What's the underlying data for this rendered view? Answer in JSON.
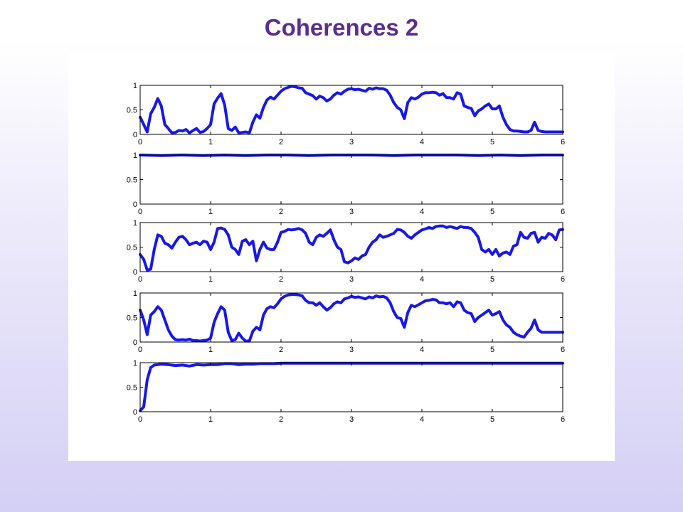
{
  "slide": {
    "title": "Coherences 2"
  },
  "colors": {
    "line": "#1818e6",
    "title": "#5b2d91",
    "axes": "#000000"
  },
  "chart_data": [
    {
      "type": "line",
      "xlim": [
        0,
        6
      ],
      "ylim": [
        0,
        1
      ],
      "xticks": [
        "0",
        "1",
        "2",
        "3",
        "4",
        "5",
        "6"
      ],
      "yticks": [
        "0",
        "0.5",
        "1"
      ],
      "grid": false,
      "x": [
        0,
        0.05,
        0.1,
        0.15,
        0.2,
        0.25,
        0.3,
        0.35,
        0.4,
        0.45,
        0.5,
        0.55,
        0.6,
        0.65,
        0.7,
        0.75,
        0.8,
        0.85,
        0.9,
        0.95,
        1.0,
        1.05,
        1.1,
        1.15,
        1.2,
        1.25,
        1.3,
        1.35,
        1.4,
        1.45,
        1.5,
        1.55,
        1.6,
        1.65,
        1.7,
        1.75,
        1.8,
        1.85,
        1.9,
        1.95,
        2.0,
        2.05,
        2.1,
        2.15,
        2.2,
        2.25,
        2.3,
        2.35,
        2.4,
        2.45,
        2.5,
        2.55,
        2.6,
        2.65,
        2.7,
        2.75,
        2.8,
        2.85,
        2.9,
        2.95,
        3.0,
        3.05,
        3.1,
        3.15,
        3.2,
        3.25,
        3.3,
        3.35,
        3.4,
        3.45,
        3.5,
        3.55,
        3.6,
        3.65,
        3.7,
        3.75,
        3.8,
        3.85,
        3.9,
        3.95,
        4.0,
        4.05,
        4.1,
        4.15,
        4.2,
        4.25,
        4.3,
        4.35,
        4.4,
        4.45,
        4.5,
        4.55,
        4.6,
        4.65,
        4.7,
        4.75,
        4.8,
        4.85,
        4.9,
        4.95,
        5.0,
        5.05,
        5.1,
        5.15,
        5.2,
        5.25,
        5.3,
        5.35,
        5.4,
        5.45,
        5.5,
        5.55,
        5.6,
        5.65,
        5.7,
        5.75,
        5.8,
        5.85,
        5.9,
        5.95,
        6.0
      ],
      "y": [
        0.35,
        0.2,
        0.05,
        0.42,
        0.55,
        0.73,
        0.58,
        0.2,
        0.12,
        0.03,
        0.04,
        0.08,
        0.07,
        0.1,
        0.03,
        0.08,
        0.12,
        0.04,
        0.06,
        0.12,
        0.2,
        0.62,
        0.74,
        0.83,
        0.6,
        0.12,
        0.08,
        0.15,
        0.03,
        0.04,
        0.05,
        0.03,
        0.25,
        0.4,
        0.33,
        0.55,
        0.7,
        0.76,
        0.72,
        0.8,
        0.88,
        0.93,
        0.96,
        0.98,
        0.97,
        0.95,
        0.94,
        0.85,
        0.82,
        0.79,
        0.72,
        0.78,
        0.75,
        0.68,
        0.72,
        0.8,
        0.85,
        0.82,
        0.88,
        0.92,
        0.93,
        0.91,
        0.92,
        0.9,
        0.88,
        0.94,
        0.92,
        0.95,
        0.93,
        0.93,
        0.9,
        0.8,
        0.65,
        0.55,
        0.5,
        0.32,
        0.65,
        0.75,
        0.72,
        0.76,
        0.82,
        0.85,
        0.85,
        0.86,
        0.85,
        0.8,
        0.83,
        0.75,
        0.75,
        0.72,
        0.85,
        0.82,
        0.58,
        0.55,
        0.53,
        0.38,
        0.48,
        0.52,
        0.58,
        0.62,
        0.52,
        0.52,
        0.58,
        0.35,
        0.2,
        0.1,
        0.07,
        0.07,
        0.06,
        0.05,
        0.05,
        0.08,
        0.25,
        0.08,
        0.06,
        0.05,
        0.05,
        0.05,
        0.05,
        0.05,
        0.05
      ]
    },
    {
      "type": "line",
      "xlim": [
        0,
        6
      ],
      "ylim": [
        0,
        1
      ],
      "xticks": [
        "0",
        "1",
        "2",
        "3",
        "4",
        "5",
        "6"
      ],
      "yticks": [
        "0",
        "0.5",
        "1"
      ],
      "grid": false,
      "x": [
        0,
        0.3,
        0.6,
        0.9,
        1.2,
        1.5,
        1.8,
        2.1,
        2.4,
        2.7,
        3.0,
        3.3,
        3.6,
        3.9,
        4.2,
        4.5,
        4.8,
        5.1,
        5.4,
        5.7,
        6.0
      ],
      "y": [
        1.0,
        0.99,
        1.0,
        0.99,
        1.0,
        0.99,
        1.0,
        1.0,
        0.99,
        1.0,
        1.0,
        1.0,
        0.99,
        1.0,
        1.0,
        1.0,
        0.99,
        1.0,
        0.99,
        1.0,
        1.0
      ]
    },
    {
      "type": "line",
      "xlim": [
        0,
        6
      ],
      "ylim": [
        0,
        1
      ],
      "xticks": [
        "0",
        "1",
        "2",
        "3",
        "4",
        "5",
        "6"
      ],
      "yticks": [
        "0",
        "0.5",
        "1"
      ],
      "grid": false,
      "x": [
        0,
        0.05,
        0.1,
        0.15,
        0.2,
        0.25,
        0.3,
        0.35,
        0.4,
        0.45,
        0.5,
        0.55,
        0.6,
        0.65,
        0.7,
        0.75,
        0.8,
        0.85,
        0.9,
        0.95,
        1.0,
        1.05,
        1.1,
        1.15,
        1.2,
        1.25,
        1.3,
        1.35,
        1.4,
        1.45,
        1.5,
        1.55,
        1.6,
        1.65,
        1.7,
        1.75,
        1.8,
        1.85,
        1.9,
        1.95,
        2.0,
        2.05,
        2.1,
        2.15,
        2.2,
        2.25,
        2.3,
        2.35,
        2.4,
        2.45,
        2.5,
        2.55,
        2.6,
        2.65,
        2.7,
        2.75,
        2.8,
        2.85,
        2.9,
        2.95,
        3.0,
        3.05,
        3.1,
        3.15,
        3.2,
        3.25,
        3.3,
        3.35,
        3.4,
        3.45,
        3.5,
        3.55,
        3.6,
        3.65,
        3.7,
        3.75,
        3.8,
        3.85,
        3.9,
        3.95,
        4.0,
        4.05,
        4.1,
        4.15,
        4.2,
        4.25,
        4.3,
        4.35,
        4.4,
        4.45,
        4.5,
        4.55,
        4.6,
        4.65,
        4.7,
        4.75,
        4.8,
        4.85,
        4.9,
        4.95,
        5.0,
        5.05,
        5.1,
        5.15,
        5.2,
        5.25,
        5.3,
        5.35,
        5.4,
        5.45,
        5.5,
        5.55,
        5.6,
        5.65,
        5.7,
        5.75,
        5.8,
        5.85,
        5.9,
        5.95,
        6.0
      ],
      "y": [
        0.35,
        0.25,
        0.03,
        0.05,
        0.45,
        0.75,
        0.72,
        0.58,
        0.55,
        0.48,
        0.6,
        0.7,
        0.72,
        0.65,
        0.55,
        0.58,
        0.6,
        0.55,
        0.62,
        0.6,
        0.45,
        0.6,
        0.88,
        0.89,
        0.86,
        0.75,
        0.5,
        0.45,
        0.35,
        0.62,
        0.65,
        0.55,
        0.62,
        0.22,
        0.45,
        0.6,
        0.48,
        0.45,
        0.45,
        0.6,
        0.8,
        0.82,
        0.86,
        0.85,
        0.86,
        0.88,
        0.85,
        0.78,
        0.6,
        0.55,
        0.7,
        0.75,
        0.72,
        0.78,
        0.85,
        0.65,
        0.5,
        0.45,
        0.2,
        0.18,
        0.22,
        0.28,
        0.25,
        0.32,
        0.35,
        0.5,
        0.6,
        0.65,
        0.75,
        0.7,
        0.72,
        0.75,
        0.78,
        0.86,
        0.85,
        0.8,
        0.72,
        0.68,
        0.75,
        0.8,
        0.85,
        0.87,
        0.9,
        0.88,
        0.92,
        0.93,
        0.93,
        0.9,
        0.92,
        0.9,
        0.88,
        0.92,
        0.9,
        0.9,
        0.88,
        0.8,
        0.7,
        0.45,
        0.4,
        0.45,
        0.35,
        0.45,
        0.32,
        0.38,
        0.4,
        0.35,
        0.52,
        0.55,
        0.8,
        0.7,
        0.68,
        0.78,
        0.8,
        0.6,
        0.7,
        0.68,
        0.78,
        0.75,
        0.65,
        0.85,
        0.86
      ]
    },
    {
      "type": "line",
      "xlim": [
        0,
        6
      ],
      "ylim": [
        0,
        1
      ],
      "xticks": [
        "0",
        "1",
        "2",
        "3",
        "4",
        "5",
        "6"
      ],
      "yticks": [
        "0",
        "0.5",
        "1"
      ],
      "grid": false,
      "x": [
        0,
        0.05,
        0.1,
        0.15,
        0.2,
        0.25,
        0.3,
        0.35,
        0.4,
        0.45,
        0.5,
        0.55,
        0.6,
        0.65,
        0.7,
        0.75,
        0.8,
        0.85,
        0.9,
        0.95,
        1.0,
        1.05,
        1.1,
        1.15,
        1.2,
        1.25,
        1.3,
        1.35,
        1.4,
        1.45,
        1.5,
        1.55,
        1.6,
        1.65,
        1.7,
        1.75,
        1.8,
        1.85,
        1.9,
        1.95,
        2.0,
        2.05,
        2.1,
        2.15,
        2.2,
        2.25,
        2.3,
        2.35,
        2.4,
        2.45,
        2.5,
        2.55,
        2.6,
        2.65,
        2.7,
        2.75,
        2.8,
        2.85,
        2.9,
        2.95,
        3.0,
        3.05,
        3.1,
        3.15,
        3.2,
        3.25,
        3.3,
        3.35,
        3.4,
        3.45,
        3.5,
        3.55,
        3.6,
        3.65,
        3.7,
        3.75,
        3.8,
        3.85,
        3.9,
        3.95,
        4.0,
        4.05,
        4.1,
        4.15,
        4.2,
        4.25,
        4.3,
        4.35,
        4.4,
        4.45,
        4.5,
        4.55,
        4.6,
        4.65,
        4.7,
        4.75,
        4.8,
        4.85,
        4.9,
        4.95,
        5.0,
        5.05,
        5.1,
        5.15,
        5.2,
        5.25,
        5.3,
        5.35,
        5.4,
        5.45,
        5.5,
        5.55,
        5.6,
        5.65,
        5.7,
        5.75,
        5.8,
        5.85,
        5.9,
        5.95,
        6.0
      ],
      "y": [
        0.65,
        0.45,
        0.15,
        0.55,
        0.62,
        0.72,
        0.65,
        0.45,
        0.25,
        0.12,
        0.05,
        0.04,
        0.05,
        0.04,
        0.06,
        0.03,
        0.03,
        0.02,
        0.03,
        0.04,
        0.08,
        0.4,
        0.58,
        0.72,
        0.65,
        0.2,
        0.03,
        0.05,
        0.18,
        0.08,
        0.02,
        0.02,
        0.22,
        0.3,
        0.25,
        0.55,
        0.68,
        0.72,
        0.7,
        0.78,
        0.88,
        0.93,
        0.96,
        0.97,
        0.97,
        0.96,
        0.94,
        0.85,
        0.8,
        0.8,
        0.75,
        0.8,
        0.72,
        0.65,
        0.7,
        0.78,
        0.82,
        0.8,
        0.88,
        0.9,
        0.93,
        0.91,
        0.92,
        0.9,
        0.88,
        0.92,
        0.9,
        0.94,
        0.92,
        0.93,
        0.9,
        0.8,
        0.62,
        0.5,
        0.48,
        0.3,
        0.6,
        0.75,
        0.72,
        0.76,
        0.8,
        0.84,
        0.85,
        0.87,
        0.86,
        0.8,
        0.8,
        0.78,
        0.8,
        0.72,
        0.82,
        0.8,
        0.65,
        0.6,
        0.58,
        0.42,
        0.5,
        0.55,
        0.6,
        0.65,
        0.55,
        0.58,
        0.62,
        0.45,
        0.35,
        0.3,
        0.2,
        0.15,
        0.12,
        0.1,
        0.2,
        0.28,
        0.45,
        0.25,
        0.2,
        0.2,
        0.2,
        0.2,
        0.2,
        0.2,
        0.2
      ]
    },
    {
      "type": "line",
      "xlim": [
        0,
        6
      ],
      "ylim": [
        0,
        1
      ],
      "xticks": [
        "0",
        "1",
        "2",
        "3",
        "4",
        "5",
        "6"
      ],
      "yticks": [
        "0",
        "0.5",
        "1"
      ],
      "grid": false,
      "x": [
        0,
        0.05,
        0.1,
        0.15,
        0.2,
        0.25,
        0.3,
        0.4,
        0.5,
        0.6,
        0.7,
        0.8,
        0.9,
        1.0,
        1.1,
        1.2,
        1.3,
        1.4,
        1.5,
        1.6,
        1.7,
        1.8,
        1.9,
        2.0,
        2.5,
        3.0,
        3.5,
        4.0,
        4.5,
        5.0,
        5.5,
        6.0
      ],
      "y": [
        0.02,
        0.1,
        0.65,
        0.9,
        0.95,
        0.96,
        0.97,
        0.96,
        0.94,
        0.95,
        0.93,
        0.96,
        0.95,
        0.96,
        0.96,
        0.98,
        0.98,
        0.96,
        0.97,
        0.97,
        0.98,
        0.98,
        0.98,
        0.99,
        0.99,
        0.99,
        0.99,
        0.99,
        0.99,
        0.99,
        0.99,
        0.99
      ]
    }
  ]
}
